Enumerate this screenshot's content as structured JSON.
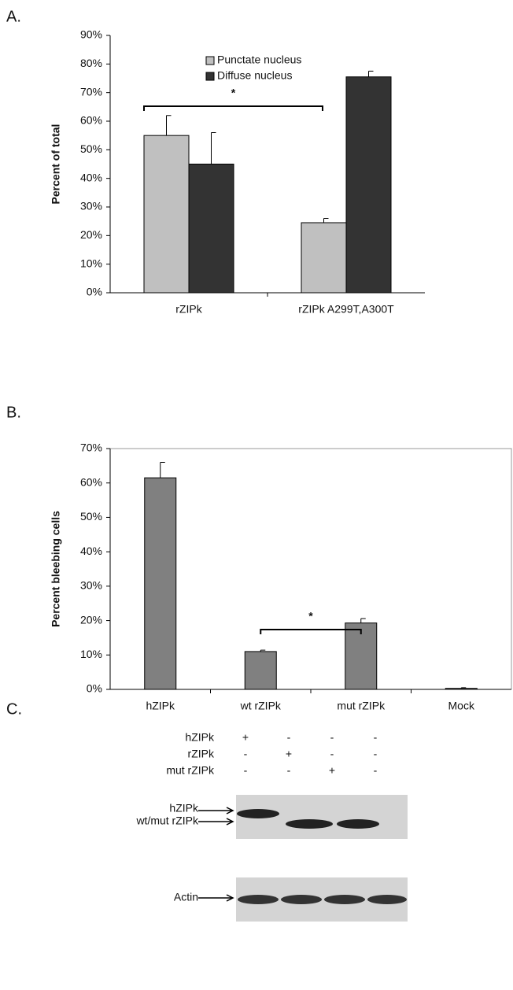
{
  "chart_data": [
    {
      "type": "bar",
      "panel_label": "A.",
      "ylabel": "Percent of total",
      "categories": [
        "rZIPk",
        "rZIPk A299T,A300T"
      ],
      "series": [
        {
          "name": "Punctate nucleus",
          "color": "#c0c0c0",
          "values": [
            55,
            24.5
          ],
          "errors": [
            7,
            1.5
          ]
        },
        {
          "name": "Diffuse nucleus",
          "color": "#333333",
          "values": [
            45,
            75.5
          ],
          "errors": [
            11,
            2
          ]
        }
      ],
      "ylim": [
        0,
        90
      ],
      "yticks": [
        {
          "value": 0,
          "label": "0%"
        },
        {
          "value": 10,
          "label": "10%"
        },
        {
          "value": 20,
          "label": "20%"
        },
        {
          "value": 30,
          "label": "30%"
        },
        {
          "value": 40,
          "label": "40%"
        },
        {
          "value": 50,
          "label": "50%"
        },
        {
          "value": 60,
          "label": "60%"
        },
        {
          "value": 70,
          "label": "70%"
        },
        {
          "value": 80,
          "label": "80%"
        },
        {
          "value": 90,
          "label": "90%"
        }
      ],
      "annotation": "*",
      "legend": "top"
    },
    {
      "type": "bar",
      "panel_label": "B.",
      "ylabel": "Percent bleebing cells",
      "categories": [
        "hZIPk",
        "wt rZIPk",
        "mut rZIPk",
        "Mock"
      ],
      "series": [
        {
          "color": "#808080",
          "values": [
            61.5,
            11,
            19.3,
            0.3
          ],
          "errors": [
            4.5,
            0.4,
            1.3,
            0.2
          ]
        }
      ],
      "ylim": [
        0,
        70
      ],
      "yticks": [
        {
          "value": 0,
          "label": "0%"
        },
        {
          "value": 10,
          "label": "10%"
        },
        {
          "value": 20,
          "label": "20%"
        },
        {
          "value": 30,
          "label": "30%"
        },
        {
          "value": 40,
          "label": "40%"
        },
        {
          "value": 50,
          "label": "50%"
        },
        {
          "value": 60,
          "label": "60%"
        },
        {
          "value": 70,
          "label": "70%"
        }
      ],
      "annotation": "*"
    }
  ],
  "blot": {
    "panel_label": "C.",
    "row_labels": [
      "hZIPk",
      "rZIPk",
      "mut rZIPk"
    ],
    "signs": [
      [
        "+",
        "-",
        "-",
        "-"
      ],
      [
        "-",
        "+",
        "-",
        "-"
      ],
      [
        "-",
        "-",
        "+",
        "-"
      ]
    ],
    "band_labels": [
      "hZIPk",
      "wt/mut rZIPk",
      "Actin"
    ]
  }
}
